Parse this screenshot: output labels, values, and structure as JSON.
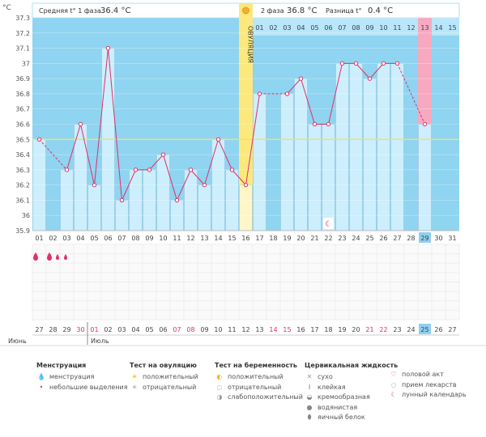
{
  "chart_data": {
    "type": "line",
    "y_unit": "°C",
    "ylim": [
      35.9,
      37.3
    ],
    "y_ticks": [
      "37.3",
      "37.2",
      "37.1",
      "37",
      "36.9",
      "36.8",
      "36.7",
      "36.6",
      "36.5",
      "36.4",
      "36.3",
      "36.2",
      "36.1",
      "36",
      "35.9"
    ],
    "cycle_days": [
      "01",
      "02",
      "03",
      "04",
      "05",
      "06",
      "07",
      "08",
      "09",
      "10",
      "11",
      "12",
      "13",
      "14",
      "15",
      "16",
      "17",
      "18",
      "19",
      "20",
      "21",
      "22",
      "23",
      "24",
      "25",
      "26",
      "27",
      "28",
      "29",
      "30",
      "31"
    ],
    "phase2_days": [
      "01",
      "02",
      "03",
      "04",
      "05",
      "06",
      "07",
      "08",
      "09",
      "10",
      "11",
      "12",
      "13",
      "14",
      "15"
    ],
    "phase2_highlight": "13",
    "current_day": "29",
    "calendar_dates": [
      "27",
      "28",
      "29",
      "30",
      "01",
      "02",
      "03",
      "04",
      "05",
      "06",
      "07",
      "08",
      "09",
      "10",
      "11",
      "12",
      "13",
      "14",
      "15",
      "16",
      "17",
      "18",
      "19",
      "20",
      "21",
      "22",
      "23",
      "24",
      "25",
      "26",
      "27"
    ],
    "red_dates_index": [
      3,
      4,
      10,
      11,
      17,
      18,
      24,
      25
    ],
    "current_date_index": 28,
    "months": [
      "Июнь",
      "Июль"
    ],
    "temperatures": [
      36.5,
      null,
      36.3,
      36.6,
      36.2,
      37.1,
      36.1,
      36.3,
      36.3,
      36.4,
      36.1,
      36.3,
      36.2,
      36.5,
      36.3,
      36.2,
      36.8,
      null,
      36.8,
      36.9,
      36.6,
      36.6,
      37.0,
      37.0,
      36.9,
      37.0,
      37.0,
      null,
      36.6,
      null,
      null
    ],
    "coverline": 36.5,
    "ovulation_day_index": 15,
    "ovulation_label": "ОВУЛЯЦИЯ",
    "phase1_text": "Средняя t° 1 фаза",
    "phase1_value": "36.4 °C",
    "phase2_text": "2 фаза",
    "phase2_value": "36.8 °C",
    "diff_text": "Разница t°",
    "diff_value": "0.4 °C",
    "menstruation_days": [
      {
        "day": 0,
        "type": "heavy"
      },
      {
        "day": 1,
        "type": "heavy"
      },
      {
        "day": 1,
        "type": "light"
      },
      {
        "day": 2,
        "type": "light"
      }
    ],
    "lunar_day_index": 21
  },
  "legend": {
    "menstruation": {
      "title": "Менструация",
      "items": [
        {
          "icon": "drop-heavy",
          "label": "менструация"
        },
        {
          "icon": "drop-light",
          "label": "небольшие выделения"
        }
      ]
    },
    "ovulation_test": {
      "title": "Тест на овуляцию",
      "items": [
        {
          "icon": "sun",
          "label": "положительный"
        },
        {
          "icon": "sun-gray",
          "label": "отрицательный"
        }
      ]
    },
    "pregnancy_test": {
      "title": "Тест на беременность",
      "items": [
        {
          "icon": "pos",
          "label": "положительный"
        },
        {
          "icon": "neg",
          "label": "отрицательный"
        },
        {
          "icon": "weak",
          "label": "слабоположительный"
        }
      ]
    },
    "cervical": {
      "title": "Цервикальная жидкость",
      "items": [
        {
          "icon": "x",
          "label": "сухо"
        },
        {
          "icon": "I",
          "label": "клейкая"
        },
        {
          "icon": "cream",
          "label": "кремообразная"
        },
        {
          "icon": "water",
          "label": "водянистая"
        },
        {
          "icon": "egg",
          "label": "яичный белок"
        }
      ]
    },
    "other": {
      "items": [
        {
          "icon": "heart",
          "label": "половой акт"
        },
        {
          "icon": "pill",
          "label": "прием лекарств"
        },
        {
          "icon": "moon",
          "label": "лунный календарь"
        }
      ]
    }
  },
  "colors": {
    "sky": "#8fd4f0",
    "bar": "#cdeefc",
    "bar_edge": "#8fc7e0",
    "line": "#e0306a",
    "ovu": "#fce87c",
    "ovu_band": "#fff6c8",
    "pink": "#f6a9c0",
    "grid": "#aee0f5",
    "coverline": "#f0e070",
    "red_text": "#e0306a",
    "current_box": "#8ecff0"
  }
}
